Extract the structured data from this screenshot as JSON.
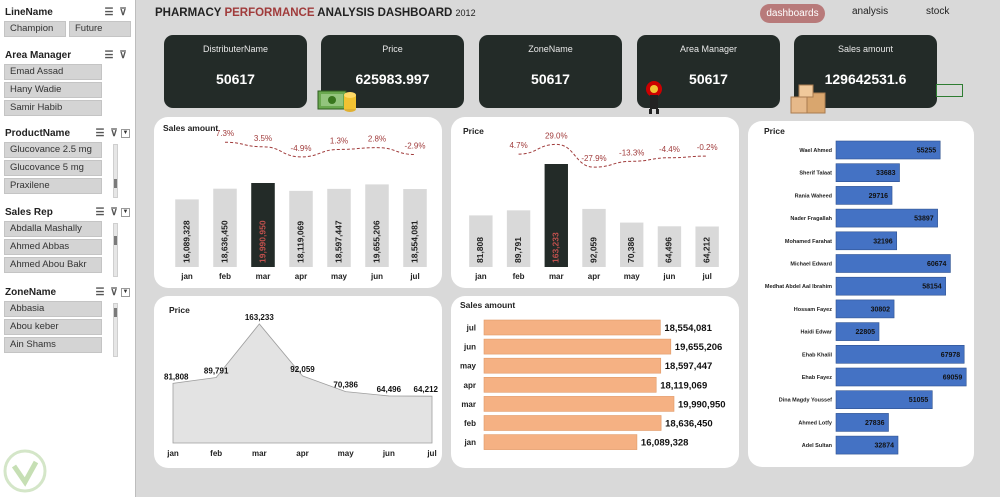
{
  "sidebar": {
    "slicers": {
      "line_name": {
        "title": "LineName",
        "items": [
          "Champion",
          "Future"
        ]
      },
      "area_manager": {
        "title": "Area Manager",
        "items": [
          "Emad Assad",
          "Hany Wadie",
          "Samir Habib"
        ]
      },
      "product_name": {
        "title": "ProductName",
        "items": [
          "Glucovance 2.5 mg",
          "Glucovance 5 mg",
          "Praxilene"
        ]
      },
      "sales_rep": {
        "title": "Sales Rep",
        "items": [
          "Abdalla Mashally",
          "Ahmed Abbas",
          "Ahmed Abou Bakr"
        ]
      },
      "zone_name": {
        "title": "ZoneName",
        "items": [
          "Abbasia",
          "Abou keber",
          "Ain Shams"
        ]
      }
    }
  },
  "header": {
    "title_part1": "PHARMACY ",
    "title_accent": "PERFORMANCE",
    "title_part2": " ANALYSIS DASHBOARD",
    "title_year": "2012",
    "nav": {
      "dashboards": "dashboards",
      "analysis": "analysis",
      "stock": "stock"
    }
  },
  "kpis": [
    {
      "label": "DistributerName",
      "value": "50617"
    },
    {
      "label": "Price",
      "value": "625983.997"
    },
    {
      "label": "ZoneName",
      "value": "50617"
    },
    {
      "label": "Area Manager",
      "value": "50617"
    },
    {
      "label": "Sales amount",
      "value": "129642531.6"
    }
  ],
  "colors": {
    "kpi_bg": "#232b28",
    "highlight_bar": "#232b28",
    "bar_gray": "#d9d9d9",
    "orange_bar": "#f5b183",
    "blue_bar": "#4472c4",
    "pct_red": "#a03b3b"
  },
  "chart_data": [
    {
      "type": "bar",
      "title": "Sales amount",
      "categories": [
        "jan",
        "feb",
        "mar",
        "apr",
        "may",
        "jun",
        "jul"
      ],
      "values": [
        16089328,
        18636450,
        19990950,
        18119069,
        18597447,
        19655206,
        18554081
      ],
      "value_labels": [
        "16,089,328",
        "18,636,450",
        "19,990,950",
        "18,119,069",
        "18,597,447",
        "19,655,206",
        "18,554,081"
      ],
      "pct_change": [
        "",
        "7.3%",
        "3.5%",
        "-4.9%",
        "1.3%",
        "2.8%",
        "-2.9%"
      ],
      "highlight_index": 2
    },
    {
      "type": "bar",
      "title": "Price",
      "categories": [
        "jan",
        "feb",
        "mar",
        "apr",
        "may",
        "jun",
        "jul"
      ],
      "values": [
        81808,
        89791,
        163233,
        92059,
        70386,
        64496,
        64212
      ],
      "value_labels": [
        "81,808",
        "89,791",
        "163,233",
        "92,059",
        "70,386",
        "64,496",
        "64,212"
      ],
      "pct_change": [
        "",
        "4.7%",
        "29.0%",
        "-27.9%",
        "-13.3%",
        "-4.4%",
        "-0.2%"
      ],
      "highlight_index": 2
    },
    {
      "type": "bar",
      "orientation": "horizontal",
      "title": "Price",
      "categories": [
        "Wael Ahmed",
        "Sherif Talaat",
        "Rania Waheed",
        "Nader Fragallah",
        "Mohamed Farahat",
        "Michael Edward",
        "Medhat Abdel Aal Ibrahim",
        "Hossam Fayez",
        "Haidi Edwar",
        "Ehab Khalil",
        "Ehab Fayez",
        "Dina Magdy Youssef",
        "Ahmed Lotfy",
        "Adel Sultan"
      ],
      "values": [
        55255,
        33683,
        29716,
        53897,
        32196,
        60674,
        58154,
        30802,
        22805,
        67978,
        69059,
        51055,
        27836,
        32874
      ]
    },
    {
      "type": "area",
      "title": "Price",
      "categories": [
        "jan",
        "feb",
        "mar",
        "apr",
        "may",
        "jun",
        "jul"
      ],
      "values": [
        81808,
        89791,
        163233,
        92059,
        70386,
        64496,
        64212
      ],
      "value_labels": [
        "81,808",
        "89,791",
        "163,233",
        "92,059",
        "70,386",
        "64,496",
        "64,212"
      ]
    },
    {
      "type": "bar",
      "orientation": "horizontal",
      "title": "Sales amount",
      "categories": [
        "jul",
        "jun",
        "may",
        "apr",
        "mar",
        "feb",
        "jan"
      ],
      "values": [
        18554081,
        19655206,
        18597447,
        18119069,
        19990950,
        18636450,
        16089328
      ],
      "value_labels": [
        "18,554,081",
        "19,655,206",
        "18,597,447",
        "18,119,069",
        "19,990,950",
        "18,636,450",
        "16,089,328"
      ]
    }
  ]
}
